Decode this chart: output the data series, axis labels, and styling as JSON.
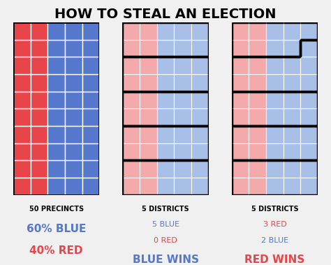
{
  "title": "HOW TO STEAL AN ELECTION",
  "title_fontsize": 14,
  "background_color": "#f0f0f0",
  "red_color": "#e8454a",
  "blue_color": "#5577cc",
  "light_red": "#f4a9aa",
  "light_blue": "#a8c0e8",
  "grid_rows": 10,
  "grid_cols": 5,
  "red_cols": 2,
  "labels_panel0": [
    "50 PRECINCTS",
    "60% BLUE",
    "40% RED"
  ],
  "labels_panel1": [
    "5 DISTRICTS",
    "5 BLUE",
    "0 RED",
    "BLUE WINS"
  ],
  "labels_panel2": [
    "5 DISTRICTS",
    "3 RED",
    "2 BLUE",
    "RED WINS"
  ],
  "gerry_districts": [
    [
      [
        0,
        9
      ],
      [
        1,
        9
      ],
      [
        2,
        9
      ],
      [
        3,
        9
      ],
      [
        4,
        9
      ],
      [
        0,
        8
      ],
      [
        1,
        8
      ],
      [
        2,
        8
      ],
      [
        3,
        8
      ]
    ],
    [
      [
        4,
        8
      ],
      [
        4,
        7
      ],
      [
        4,
        6
      ],
      [
        2,
        7
      ],
      [
        3,
        7
      ],
      [
        2,
        6
      ],
      [
        3,
        6
      ],
      [
        0,
        7
      ],
      [
        1,
        7
      ],
      [
        0,
        6
      ],
      [
        1,
        6
      ]
    ],
    [
      [
        0,
        5
      ],
      [
        1,
        5
      ],
      [
        2,
        5
      ],
      [
        3,
        5
      ],
      [
        4,
        5
      ],
      [
        0,
        4
      ],
      [
        1,
        4
      ],
      [
        2,
        4
      ],
      [
        3,
        4
      ],
      [
        4,
        4
      ]
    ],
    [
      [
        0,
        3
      ],
      [
        1,
        3
      ],
      [
        0,
        2
      ],
      [
        1,
        2
      ],
      [
        2,
        3
      ],
      [
        2,
        2
      ],
      [
        3,
        2
      ],
      [
        4,
        2
      ],
      [
        3,
        3
      ],
      [
        4,
        3
      ]
    ],
    [
      [
        0,
        1
      ],
      [
        1,
        1
      ],
      [
        2,
        1
      ],
      [
        3,
        1
      ],
      [
        4,
        1
      ],
      [
        0,
        0
      ],
      [
        1,
        0
      ],
      [
        2,
        0
      ],
      [
        3,
        0
      ],
      [
        4,
        0
      ]
    ]
  ]
}
